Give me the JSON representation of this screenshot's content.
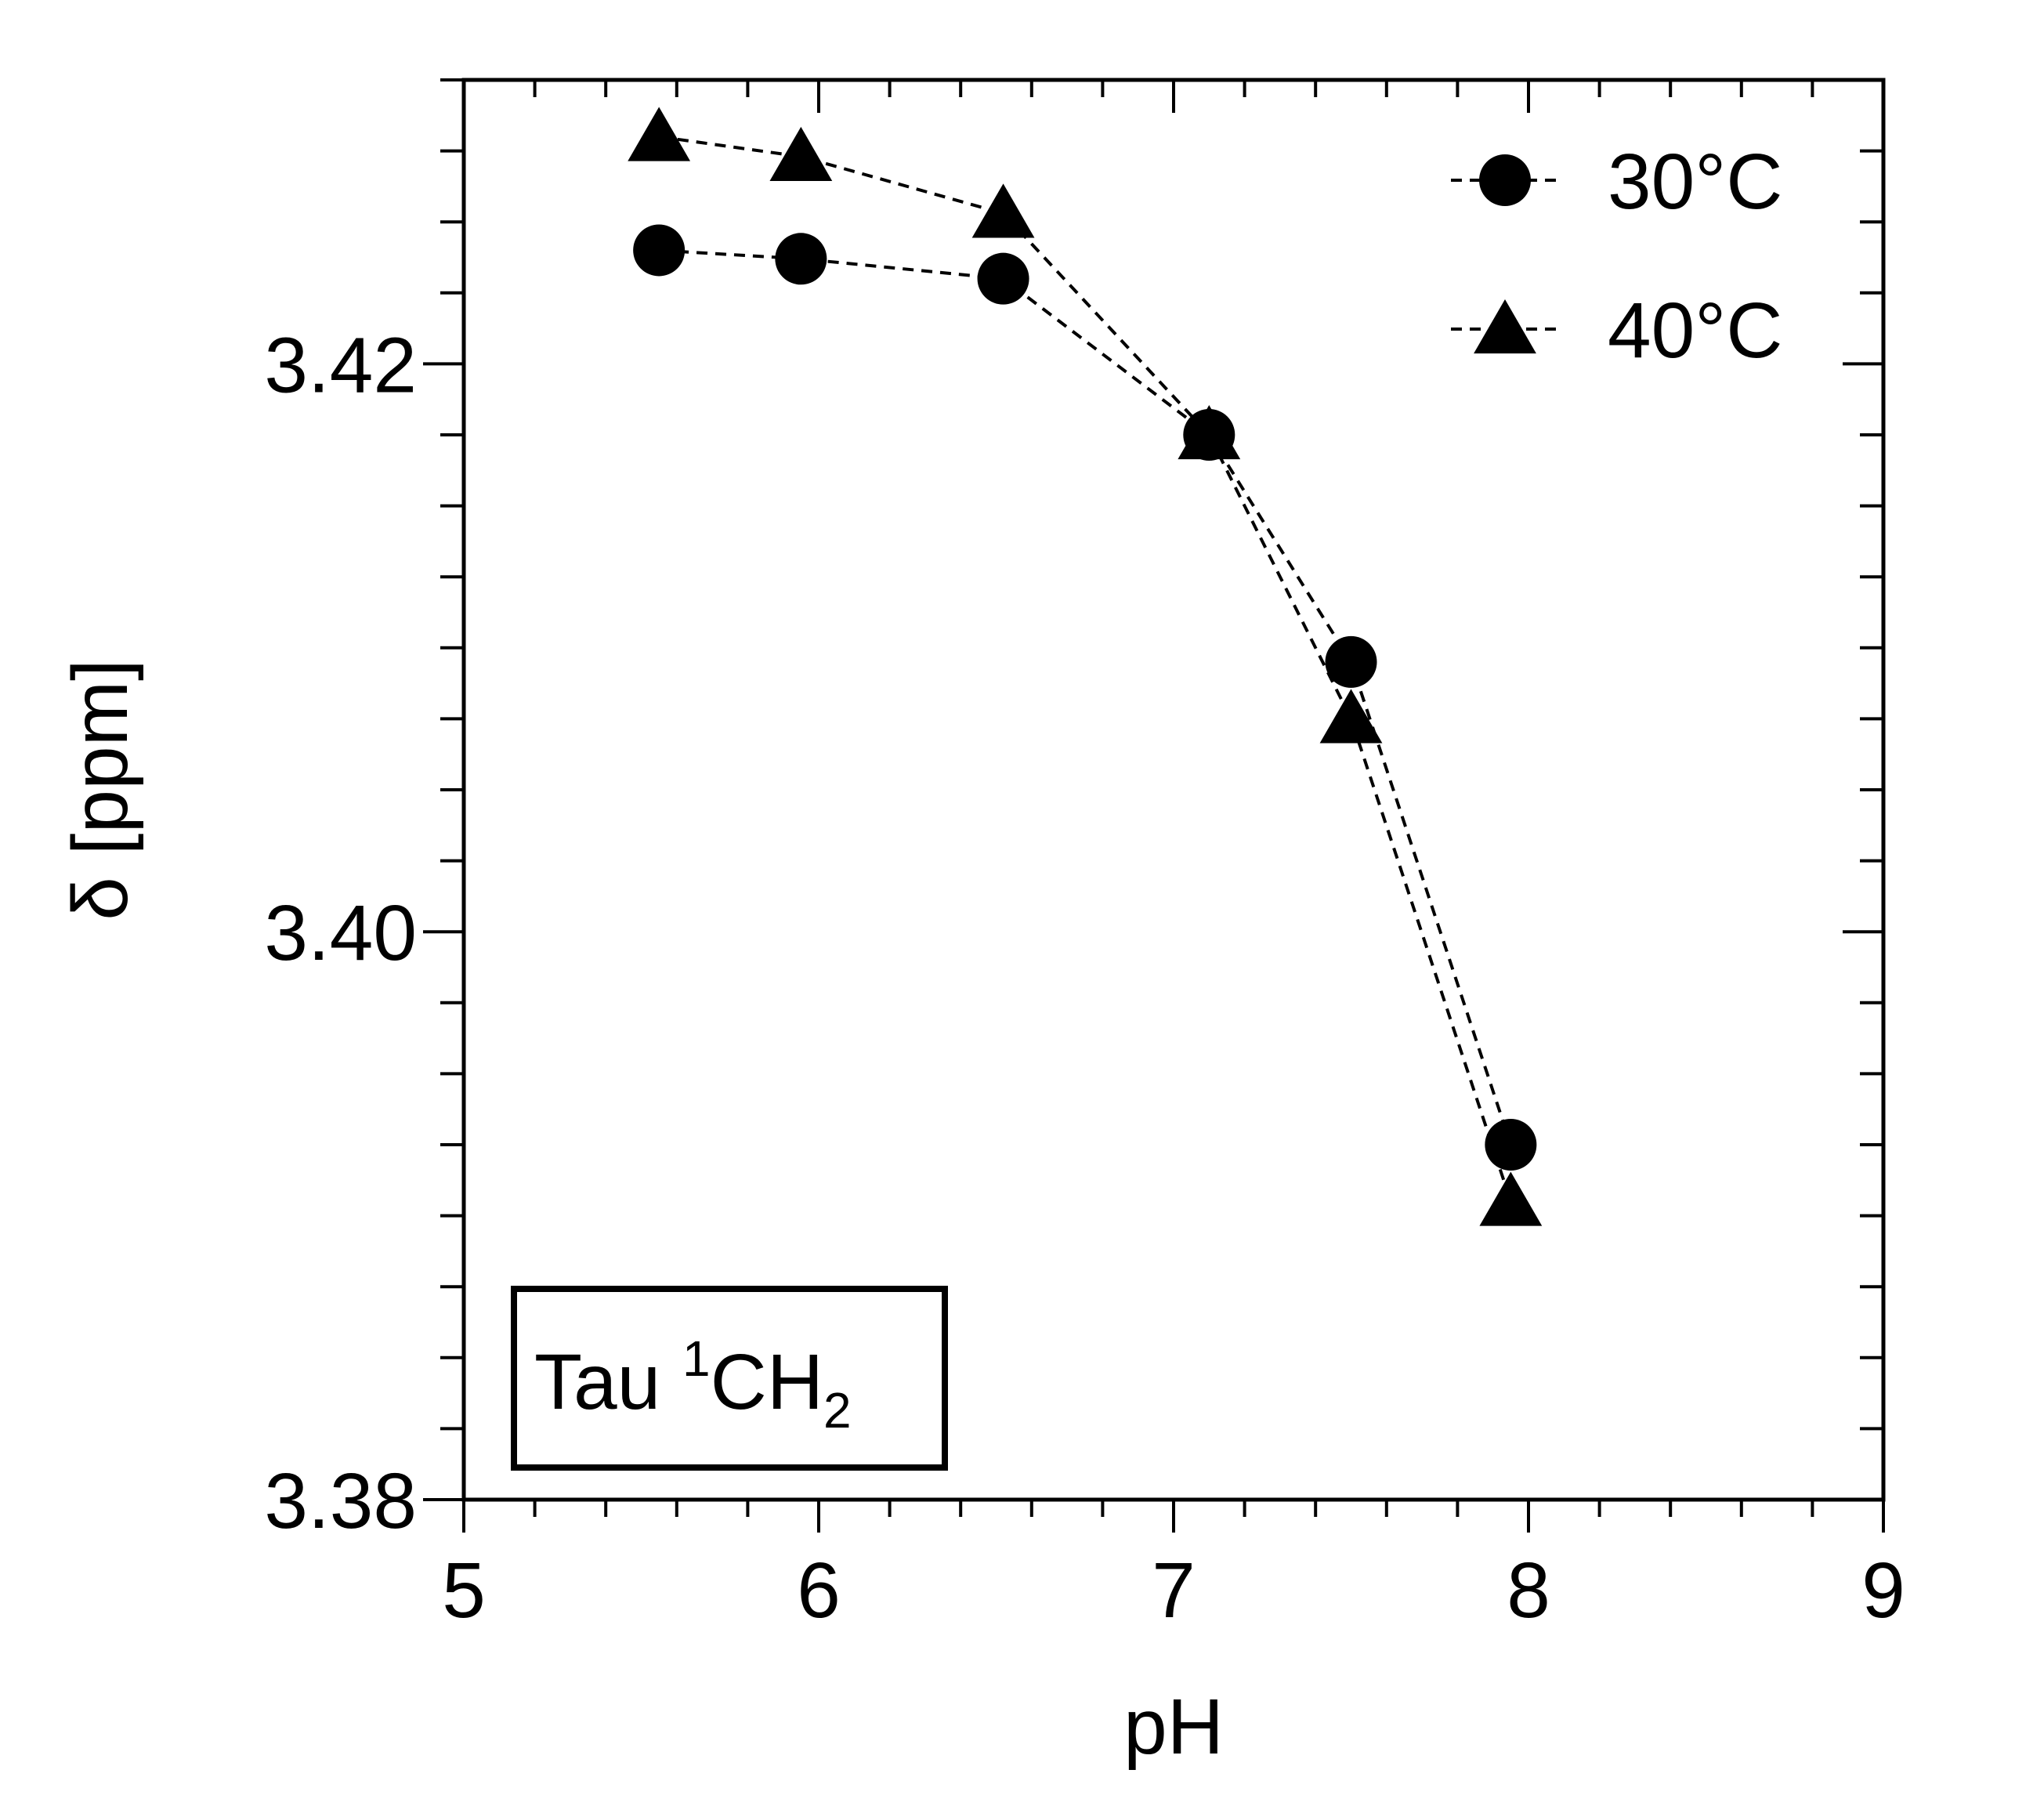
{
  "chart_data": {
    "type": "line",
    "xlabel": "pH",
    "ylabel": "δ [ppm]",
    "xlim": [
      5,
      9
    ],
    "ylim": [
      3.38,
      3.43
    ],
    "x_ticks": [
      "5",
      "6",
      "7",
      "8",
      "9"
    ],
    "y_ticks": [
      "3.38",
      "3.40",
      "3.42"
    ],
    "y_tick_values": [
      3.38,
      3.4,
      3.42
    ],
    "x_tick_values": [
      5,
      6,
      7,
      8,
      9
    ],
    "line_style": "dashed",
    "grid": false,
    "legend_position": "top-right",
    "series": [
      {
        "name": "30°C",
        "marker": "circle",
        "x": [
          5.55,
          5.95,
          6.52,
          7.1,
          7.5,
          7.95
        ],
        "y": [
          3.424,
          3.4237,
          3.423,
          3.4175,
          3.4095,
          3.3925
        ]
      },
      {
        "name": "40°C",
        "marker": "triangle",
        "x": [
          5.55,
          5.95,
          6.52,
          7.1,
          7.5,
          7.95
        ],
        "y": [
          3.428,
          3.4273,
          3.4253,
          3.4175,
          3.4075,
          3.3905
        ]
      }
    ],
    "annotation": {
      "text": "Tau ",
      "superscript": "1",
      "mid": "CH",
      "subscript": "2"
    },
    "colors": {
      "marker": "#000000",
      "line": "#000000",
      "axes": "#000000"
    }
  }
}
